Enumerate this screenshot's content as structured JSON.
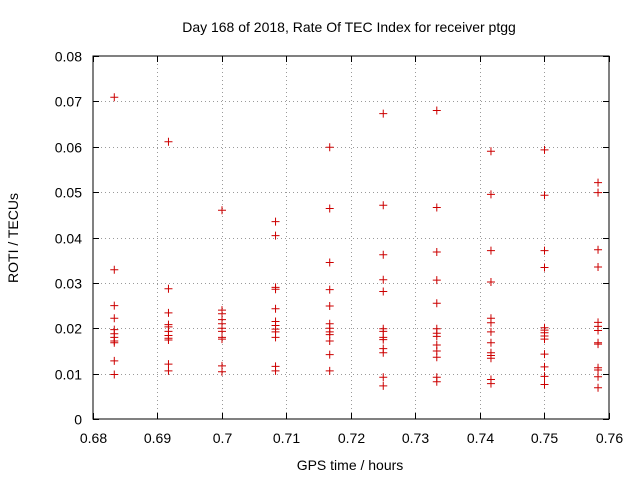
{
  "chart_data": {
    "type": "scatter",
    "title": "Day 168 of 2018, Rate Of TEC Index for receiver ptgg",
    "xlabel": "GPS time / hours",
    "ylabel": "ROTI / TECUs",
    "xlim": [
      0.68,
      0.76
    ],
    "ylim": [
      0,
      0.08
    ],
    "x_ticks": [
      0.68,
      0.69,
      0.7,
      0.71,
      0.72,
      0.73,
      0.74,
      0.75,
      0.76
    ],
    "x_tick_labels": [
      "0.68",
      "0.69",
      "0.7",
      "0.71",
      "0.72",
      "0.73",
      "0.74",
      "0.75",
      "0.76"
    ],
    "y_ticks": [
      0,
      0.01,
      0.02,
      0.03,
      0.04,
      0.05,
      0.06,
      0.07,
      0.08
    ],
    "y_tick_labels": [
      "0",
      "0.01",
      "0.02",
      "0.03",
      "0.04",
      "0.05",
      "0.06",
      "0.07",
      "0.08"
    ],
    "grid": true,
    "marker": "+",
    "marker_color": "#cc0000",
    "series": [
      {
        "name": "ROTI",
        "points": [
          [
            0.6833,
            0.0709
          ],
          [
            0.6833,
            0.0329
          ],
          [
            0.6833,
            0.025
          ],
          [
            0.6833,
            0.0222
          ],
          [
            0.6833,
            0.0197
          ],
          [
            0.6833,
            0.0188
          ],
          [
            0.6833,
            0.018
          ],
          [
            0.6833,
            0.0172
          ],
          [
            0.6833,
            0.0168
          ],
          [
            0.6833,
            0.0128
          ],
          [
            0.6833,
            0.0098
          ],
          [
            0.6917,
            0.0611
          ],
          [
            0.6917,
            0.0287
          ],
          [
            0.6917,
            0.0234
          ],
          [
            0.6917,
            0.0208
          ],
          [
            0.6917,
            0.0203
          ],
          [
            0.6917,
            0.0193
          ],
          [
            0.6917,
            0.0184
          ],
          [
            0.6917,
            0.0178
          ],
          [
            0.6917,
            0.0174
          ],
          [
            0.6917,
            0.0121
          ],
          [
            0.6917,
            0.0106
          ],
          [
            0.7,
            0.046
          ],
          [
            0.7,
            0.024
          ],
          [
            0.7,
            0.0232
          ],
          [
            0.7,
            0.0219
          ],
          [
            0.7,
            0.021
          ],
          [
            0.7,
            0.02
          ],
          [
            0.7,
            0.0193
          ],
          [
            0.7,
            0.018
          ],
          [
            0.7,
            0.0176
          ],
          [
            0.7,
            0.0117
          ],
          [
            0.7,
            0.0104
          ],
          [
            0.7083,
            0.0435
          ],
          [
            0.7083,
            0.0404
          ],
          [
            0.7083,
            0.029
          ],
          [
            0.7083,
            0.0286
          ],
          [
            0.7083,
            0.0243
          ],
          [
            0.7083,
            0.0215
          ],
          [
            0.7083,
            0.0206
          ],
          [
            0.7083,
            0.0198
          ],
          [
            0.7083,
            0.0192
          ],
          [
            0.7083,
            0.018
          ],
          [
            0.7083,
            0.0116
          ],
          [
            0.7083,
            0.0106
          ],
          [
            0.7167,
            0.0599
          ],
          [
            0.7167,
            0.0464
          ],
          [
            0.7167,
            0.0345
          ],
          [
            0.7167,
            0.0285
          ],
          [
            0.7167,
            0.0249
          ],
          [
            0.7167,
            0.021
          ],
          [
            0.7167,
            0.02
          ],
          [
            0.7167,
            0.0192
          ],
          [
            0.7167,
            0.0186
          ],
          [
            0.7167,
            0.0172
          ],
          [
            0.7167,
            0.0142
          ],
          [
            0.7167,
            0.0106
          ],
          [
            0.725,
            0.0673
          ],
          [
            0.725,
            0.0471
          ],
          [
            0.725,
            0.0362
          ],
          [
            0.725,
            0.0307
          ],
          [
            0.725,
            0.0281
          ],
          [
            0.725,
            0.0199
          ],
          [
            0.725,
            0.0193
          ],
          [
            0.725,
            0.018
          ],
          [
            0.725,
            0.0175
          ],
          [
            0.725,
            0.0155
          ],
          [
            0.725,
            0.0146
          ],
          [
            0.725,
            0.0092
          ],
          [
            0.725,
            0.0073
          ],
          [
            0.7333,
            0.068
          ],
          [
            0.7333,
            0.0466
          ],
          [
            0.7333,
            0.0368
          ],
          [
            0.7333,
            0.0306
          ],
          [
            0.7333,
            0.0255
          ],
          [
            0.7333,
            0.0199
          ],
          [
            0.7333,
            0.0189
          ],
          [
            0.7333,
            0.0182
          ],
          [
            0.7333,
            0.0163
          ],
          [
            0.7333,
            0.015
          ],
          [
            0.7333,
            0.0136
          ],
          [
            0.7333,
            0.0092
          ],
          [
            0.7333,
            0.0082
          ],
          [
            0.7417,
            0.059
          ],
          [
            0.7417,
            0.0495
          ],
          [
            0.7417,
            0.0371
          ],
          [
            0.7417,
            0.0302
          ],
          [
            0.7417,
            0.0222
          ],
          [
            0.7417,
            0.0212
          ],
          [
            0.7417,
            0.0192
          ],
          [
            0.7417,
            0.0168
          ],
          [
            0.7417,
            0.0146
          ],
          [
            0.7417,
            0.014
          ],
          [
            0.7417,
            0.0134
          ],
          [
            0.7417,
            0.0087
          ],
          [
            0.7417,
            0.0078
          ],
          [
            0.75,
            0.0593
          ],
          [
            0.75,
            0.0493
          ],
          [
            0.75,
            0.0371
          ],
          [
            0.75,
            0.0334
          ],
          [
            0.75,
            0.0201
          ],
          [
            0.75,
            0.0196
          ],
          [
            0.75,
            0.019
          ],
          [
            0.75,
            0.0183
          ],
          [
            0.75,
            0.0176
          ],
          [
            0.75,
            0.0143
          ],
          [
            0.75,
            0.0115
          ],
          [
            0.75,
            0.0094
          ],
          [
            0.75,
            0.0076
          ],
          [
            0.7583,
            0.0521
          ],
          [
            0.7583,
            0.0499
          ],
          [
            0.7583,
            0.0373
          ],
          [
            0.7583,
            0.0335
          ],
          [
            0.7583,
            0.0213
          ],
          [
            0.7583,
            0.0204
          ],
          [
            0.7583,
            0.0195
          ],
          [
            0.7583,
            0.0168
          ],
          [
            0.7583,
            0.0165
          ],
          [
            0.7583,
            0.0113
          ],
          [
            0.7583,
            0.0108
          ],
          [
            0.7583,
            0.0093
          ],
          [
            0.7583,
            0.0069
          ]
        ]
      }
    ]
  }
}
